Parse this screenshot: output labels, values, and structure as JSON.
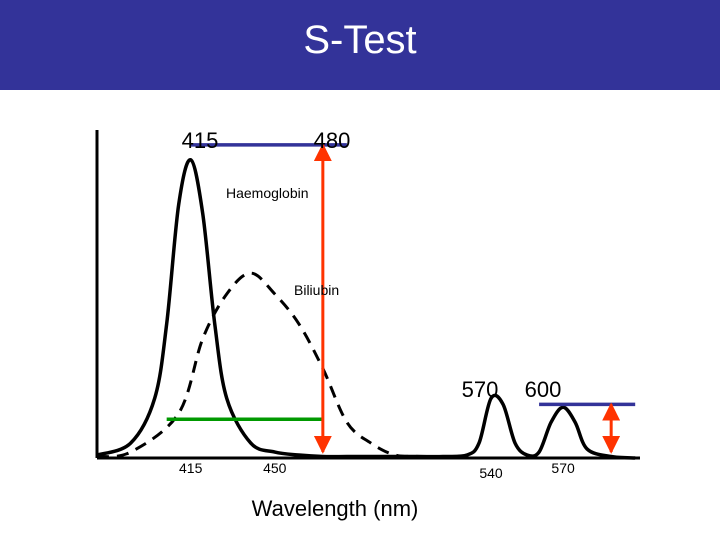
{
  "slide": {
    "title": "S-Test",
    "title_bar_color": "#333399"
  },
  "chart_data": {
    "type": "line",
    "title": "S-Test",
    "xlabel": "Wavelength (nm)",
    "ylabel": "",
    "x_tick_labels": [
      {
        "value": 415,
        "text": "415"
      },
      {
        "value": 450,
        "text": "450"
      },
      {
        "value": 540,
        "text": "540"
      },
      {
        "value": 570,
        "text": "570"
      }
    ],
    "top_labels": [
      {
        "value": 415,
        "text": "415"
      },
      {
        "value": 480,
        "text": "480"
      }
    ],
    "right_labels": [
      "570",
      "600"
    ],
    "annotations": {
      "haemoglobin": "Haemoglobin",
      "bilirubin": "Biliubin"
    },
    "series": [
      {
        "style": "solid",
        "x": [
          376,
          390,
          400,
          405,
          410,
          415,
          420,
          425,
          430,
          440,
          450,
          460,
          470,
          480,
          490,
          500,
          510,
          520,
          530,
          535,
          540,
          545,
          550,
          555,
          560,
          565,
          570,
          575,
          580,
          590,
          600
        ],
        "y": [
          0.01,
          0.05,
          0.2,
          0.45,
          0.85,
          1.0,
          0.82,
          0.45,
          0.2,
          0.05,
          0.02,
          0.01,
          0.005,
          0.005,
          0.005,
          0.005,
          0.005,
          0.005,
          0.01,
          0.05,
          0.2,
          0.18,
          0.05,
          0.01,
          0.02,
          0.12,
          0.17,
          0.12,
          0.03,
          0.005,
          0.0
        ]
      },
      {
        "style": "dashed",
        "x": [
          376,
          390,
          410,
          420,
          430,
          440,
          450,
          460,
          470,
          480,
          490,
          500,
          510,
          520
        ],
        "y": [
          0.005,
          0.02,
          0.15,
          0.4,
          0.55,
          0.62,
          0.55,
          0.45,
          0.3,
          0.12,
          0.05,
          0.01,
          0.005,
          0.0
        ]
      }
    ],
    "reference_lines": [
      {
        "kind": "horizontal",
        "color": "#333399",
        "x_start": 415,
        "x_end": 480,
        "y": 1.05
      },
      {
        "kind": "horizontal",
        "color": "#333399",
        "x_start": 560,
        "x_end": 600,
        "y": 0.18
      },
      {
        "kind": "horizontal",
        "color": "#009900",
        "x_start": 405,
        "x_end": 470,
        "y": 0.13
      },
      {
        "kind": "double_arrow",
        "color": "#ff3300",
        "x": 470,
        "y_start": 0.02,
        "y_end": 1.05
      },
      {
        "kind": "double_arrow",
        "color": "#ff3300",
        "x": 590,
        "y_start": 0.02,
        "y_end": 0.18
      }
    ],
    "xlim": [
      376,
      602
    ],
    "ylim": [
      0,
      1.1
    ],
    "grid": false
  }
}
